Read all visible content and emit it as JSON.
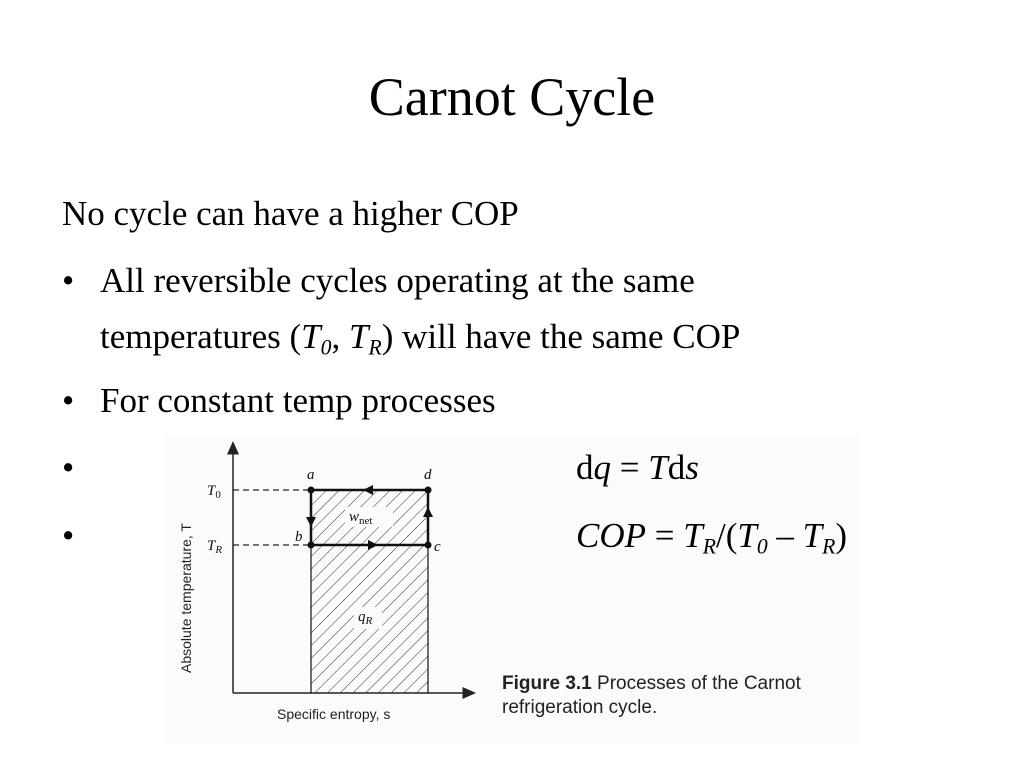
{
  "slide": {
    "title": "Carnot Cycle",
    "intro": "No cycle can have a higher COP",
    "bullets": {
      "b1_line1": "All reversible cycles operating at the same",
      "b1_line2_pre": "temperatures (",
      "b1_T0_T": "T",
      "b1_T0_sub": "0",
      "b1_comma": ", ",
      "b1_TR_T": "T",
      "b1_TR_sub": "R",
      "b1_line2_post": ") will have the same COP",
      "b2": "For constant temp processes"
    },
    "bullet_symbol": "•",
    "equations": {
      "eq1_d": "d",
      "eq1_q": "q",
      "eq1_eq": " = ",
      "eq1_T": "T",
      "eq1_d2": "d",
      "eq1_s": "s",
      "eq2_cop": "COP",
      "eq2_eq": " = ",
      "eq2_T": "T",
      "eq2_R": "R",
      "eq2_slash": "/(",
      "eq2_T0": "T",
      "eq2_0": "0",
      "eq2_minus": " – ",
      "eq2_T2": "T",
      "eq2_R2": "R",
      "eq2_close": ")"
    }
  },
  "figure": {
    "y_axis_label": "Absolute temperature, T",
    "x_axis_label": "Specific entropy, s",
    "tick_T0": "T",
    "tick_T0_sub": "0",
    "tick_TR": "T",
    "tick_TR_sub": "R",
    "point_a": "a",
    "point_b": "b",
    "point_c": "c",
    "point_d": "d",
    "w_net": "w",
    "w_net_sub": "net",
    "q_R": "q",
    "q_R_sub": "R",
    "caption_bold": "Figure 3.1",
    "caption_text": "Processes of the Carnot refrigeration cycle."
  },
  "colors": {
    "text": "#000000",
    "figure_bg": "#fbfbfb",
    "line": "#1a1a1a"
  }
}
